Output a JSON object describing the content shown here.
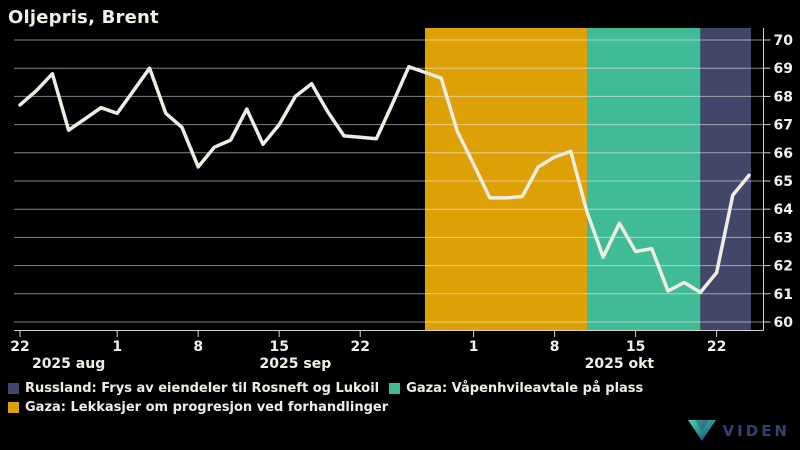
{
  "title": "Oljepris, Brent",
  "colors": {
    "background": "#000000",
    "line": "#efece2",
    "text": "#f2f0e6",
    "grid": "#909090",
    "axis": "#d6d4cb",
    "band_orange": "#dda005",
    "band_teal": "#3fbc97",
    "band_blue": "#424669",
    "logo_text": "#334070",
    "logo_gradient_start": "#46d6b8",
    "logo_gradient_end": "#27335e"
  },
  "chart_data": {
    "type": "line",
    "title": "Oljepris, Brent",
    "xlabel": "",
    "ylabel": "",
    "ylim": [
      60,
      70
    ],
    "yticks": [
      60,
      61,
      62,
      63,
      64,
      65,
      66,
      67,
      68,
      69,
      70
    ],
    "grid": true,
    "legend_position": "bottom",
    "x_dates": [
      "22. aug",
      "25. aug",
      "26. aug",
      "27. aug",
      "28. aug",
      "29. aug",
      "1. sep",
      "2. sep",
      "3. sep",
      "4. sep",
      "5. sep",
      "8. sep",
      "9. sep",
      "10. sep",
      "11. sep",
      "12. sep",
      "15. sep",
      "16. sep",
      "17. sep",
      "18. sep",
      "19. sep",
      "22. sep",
      "23. sep",
      "24. sep",
      "25. sep",
      "26. sep",
      "29. sep",
      "30. sep",
      "1. okt",
      "2. okt",
      "3. okt",
      "6. okt",
      "7. okt",
      "8. okt",
      "9. okt",
      "10. okt",
      "13. okt",
      "14. okt",
      "15. okt",
      "16. okt",
      "17. okt",
      "20. okt",
      "21. okt",
      "22. okt",
      "23. okt",
      "24. okt"
    ],
    "series": [
      {
        "name": "Brent",
        "values": [
          67.7,
          68.2,
          68.8,
          66.8,
          67.2,
          67.6,
          67.4,
          68.2,
          69.0,
          67.4,
          66.9,
          65.5,
          66.2,
          66.45,
          67.55,
          66.3,
          67.0,
          68.0,
          68.45,
          67.45,
          66.6,
          66.55,
          66.5,
          67.75,
          69.05,
          68.85,
          68.65,
          66.75,
          65.6,
          64.4,
          64.4,
          64.45,
          65.5,
          65.85,
          66.05,
          63.9,
          62.3,
          63.5,
          62.5,
          62.6,
          61.1,
          61.4,
          61.05,
          61.75,
          64.5,
          65.2
        ]
      }
    ],
    "xticks": [
      {
        "label": "22",
        "index": 0
      },
      {
        "label": "1",
        "index": 6
      },
      {
        "label": "8",
        "index": 11
      },
      {
        "label": "15",
        "index": 16
      },
      {
        "label": "22",
        "index": 21
      },
      {
        "label": "1",
        "index": 28
      },
      {
        "label": "8",
        "index": 33
      },
      {
        "label": "15",
        "index": 38
      },
      {
        "label": "22",
        "index": 43
      }
    ],
    "month_labels": [
      {
        "label": "2025 aug",
        "center_index": 3
      },
      {
        "label": "2025 sep",
        "center_index": 17
      },
      {
        "label": "2025 okt",
        "center_index": 37
      }
    ],
    "regions": [
      {
        "name": "gaza-forhandlinger",
        "label": "Gaza: Lekkasjer om progresjon ved forhandlinger",
        "color": "#dda005",
        "start_index": 25,
        "end_index": 35
      },
      {
        "name": "gaza-vapenhvile",
        "label": "Gaza: Våpenhvileavtale på plass",
        "color": "#3fbc97",
        "start_index": 35,
        "end_index": 42
      },
      {
        "name": "russland-sanksjoner",
        "label": "Russland: Frys av eiendeler til Rosneft og Lukoil",
        "color": "#424669",
        "start_index": 42,
        "end_index": 45
      }
    ]
  },
  "legend": {
    "rows": [
      [
        {
          "label": "Russland: Frys av eiendeler til Rosneft og Lukoil",
          "color": "#424669"
        },
        {
          "label": "Gaza: Våpenhvileavtale på plass",
          "color": "#3fbc97"
        }
      ],
      [
        {
          "label": "Gaza: Lekkasjer om progresjon ved forhandlinger",
          "color": "#dda005"
        }
      ]
    ]
  },
  "logo": {
    "text": "VIDEN"
  }
}
